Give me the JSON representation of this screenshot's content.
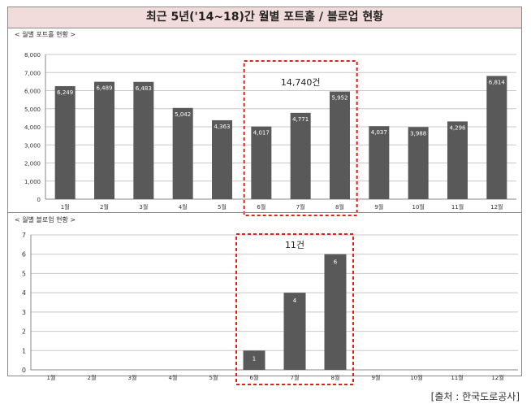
{
  "title": "최근 5년('14~18)간 월별 포트홀 / 블로업 현황",
  "source": "[출처 : 한국도로공사]",
  "chart_data": [
    {
      "type": "bar",
      "title": "< 월별 포트홀 현황 >",
      "categories": [
        "1월",
        "2월",
        "3월",
        "4월",
        "5월",
        "6월",
        "7월",
        "8월",
        "9월",
        "10월",
        "11월",
        "12월"
      ],
      "values": [
        6249,
        6489,
        6483,
        5042,
        4363,
        4017,
        4771,
        5952,
        4037,
        3988,
        4296,
        6814
      ],
      "value_labels": [
        "6,249",
        "6,489",
        "6,483",
        "5,042",
        "4,363",
        "4,017",
        "4,771",
        "5,952",
        "4,037",
        "3,988",
        "4,296",
        "6,814"
      ],
      "yticks": [
        "0",
        "1,000",
        "2,000",
        "3,000",
        "4,000",
        "5,000",
        "6,000",
        "7,000",
        "8,000"
      ],
      "ylim": [
        0,
        8000
      ],
      "grid": true,
      "bar_color": "#595959",
      "highlight": {
        "range": [
          5,
          7
        ],
        "label": "14,740건",
        "color": "#e0201b"
      }
    },
    {
      "type": "bar",
      "title": "< 월별 블로업 현황 >",
      "categories": [
        "1월",
        "2월",
        "3월",
        "4월",
        "5월",
        "6월",
        "7월",
        "8월",
        "9월",
        "10월",
        "11월",
        "12월"
      ],
      "values": [
        0,
        0,
        0,
        0,
        0,
        1,
        4,
        6,
        0,
        0,
        0,
        0
      ],
      "value_labels": [
        "",
        "",
        "",
        "",
        "",
        "1",
        "4",
        "6",
        "",
        "",
        "",
        ""
      ],
      "yticks": [
        "0",
        "1",
        "2",
        "3",
        "4",
        "5",
        "6",
        "7"
      ],
      "ylim": [
        0,
        7
      ],
      "grid": true,
      "bar_color": "#595959",
      "highlight": {
        "range": [
          5,
          7
        ],
        "label": "11건",
        "color": "#e0201b"
      }
    }
  ]
}
